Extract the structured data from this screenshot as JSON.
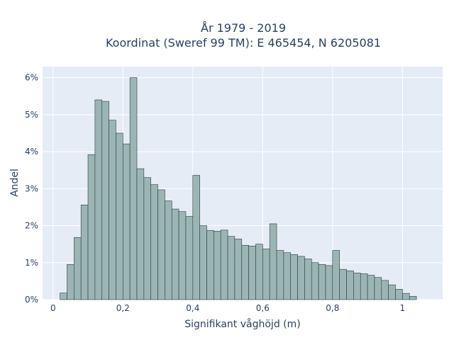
{
  "chart_data": {
    "type": "bar",
    "title_line1": "År 1979 - 2019",
    "title_line2": "Koordinat (Sweref 99 TM): E 465454, N 6205081",
    "xlabel": "Signifikant våghöjd (m)",
    "ylabel": "Andel",
    "xlim": [
      -0.03,
      1.115
    ],
    "ylim": [
      0,
      6.3
    ],
    "bin_width": 0.02,
    "bins_start": [
      0.02,
      0.04,
      0.06,
      0.08,
      0.1,
      0.12,
      0.14,
      0.16,
      0.18,
      0.2,
      0.22,
      0.24,
      0.26,
      0.28,
      0.3,
      0.32,
      0.34,
      0.36,
      0.38,
      0.4,
      0.42,
      0.44,
      0.46,
      0.48,
      0.5,
      0.52,
      0.54,
      0.56,
      0.58,
      0.6,
      0.62,
      0.64,
      0.66,
      0.68,
      0.7,
      0.72,
      0.74,
      0.76,
      0.78,
      0.8,
      0.82,
      0.84,
      0.86,
      0.88,
      0.9,
      0.92,
      0.94,
      0.96,
      0.98,
      1.0,
      1.02,
      1.04
    ],
    "values": [
      0.18,
      0.95,
      1.68,
      2.56,
      3.92,
      5.4,
      5.36,
      4.85,
      4.5,
      4.21,
      6.0,
      3.54,
      3.3,
      3.11,
      2.97,
      2.67,
      2.45,
      2.38,
      2.25,
      3.36,
      2.0,
      1.87,
      1.85,
      1.88,
      1.71,
      1.64,
      1.47,
      1.45,
      1.5,
      1.37,
      2.05,
      1.33,
      1.27,
      1.22,
      1.17,
      1.1,
      1.0,
      0.95,
      0.92,
      1.33,
      0.82,
      0.78,
      0.72,
      0.7,
      0.66,
      0.6,
      0.52,
      0.4,
      0.28,
      0.17,
      0.09,
      0.0
    ],
    "x_ticks": [
      0,
      0.2,
      0.4,
      0.6,
      0.8,
      1.0
    ],
    "x_tick_labels": [
      "0",
      "0,2",
      "0,4",
      "0,6",
      "0,8",
      "1"
    ],
    "y_ticks": [
      0,
      1,
      2,
      3,
      4,
      5,
      6
    ],
    "y_tick_labels": [
      "0%",
      "1%",
      "2%",
      "3%",
      "4%",
      "5%",
      "6%"
    ],
    "grid": true,
    "colors": {
      "bar_fill": "#9bb5b5",
      "bar_stroke": "#2f3b3b",
      "plot_bg": "#e5ecf6",
      "grid": "#ffffff",
      "text": "#2a3f5f"
    }
  }
}
